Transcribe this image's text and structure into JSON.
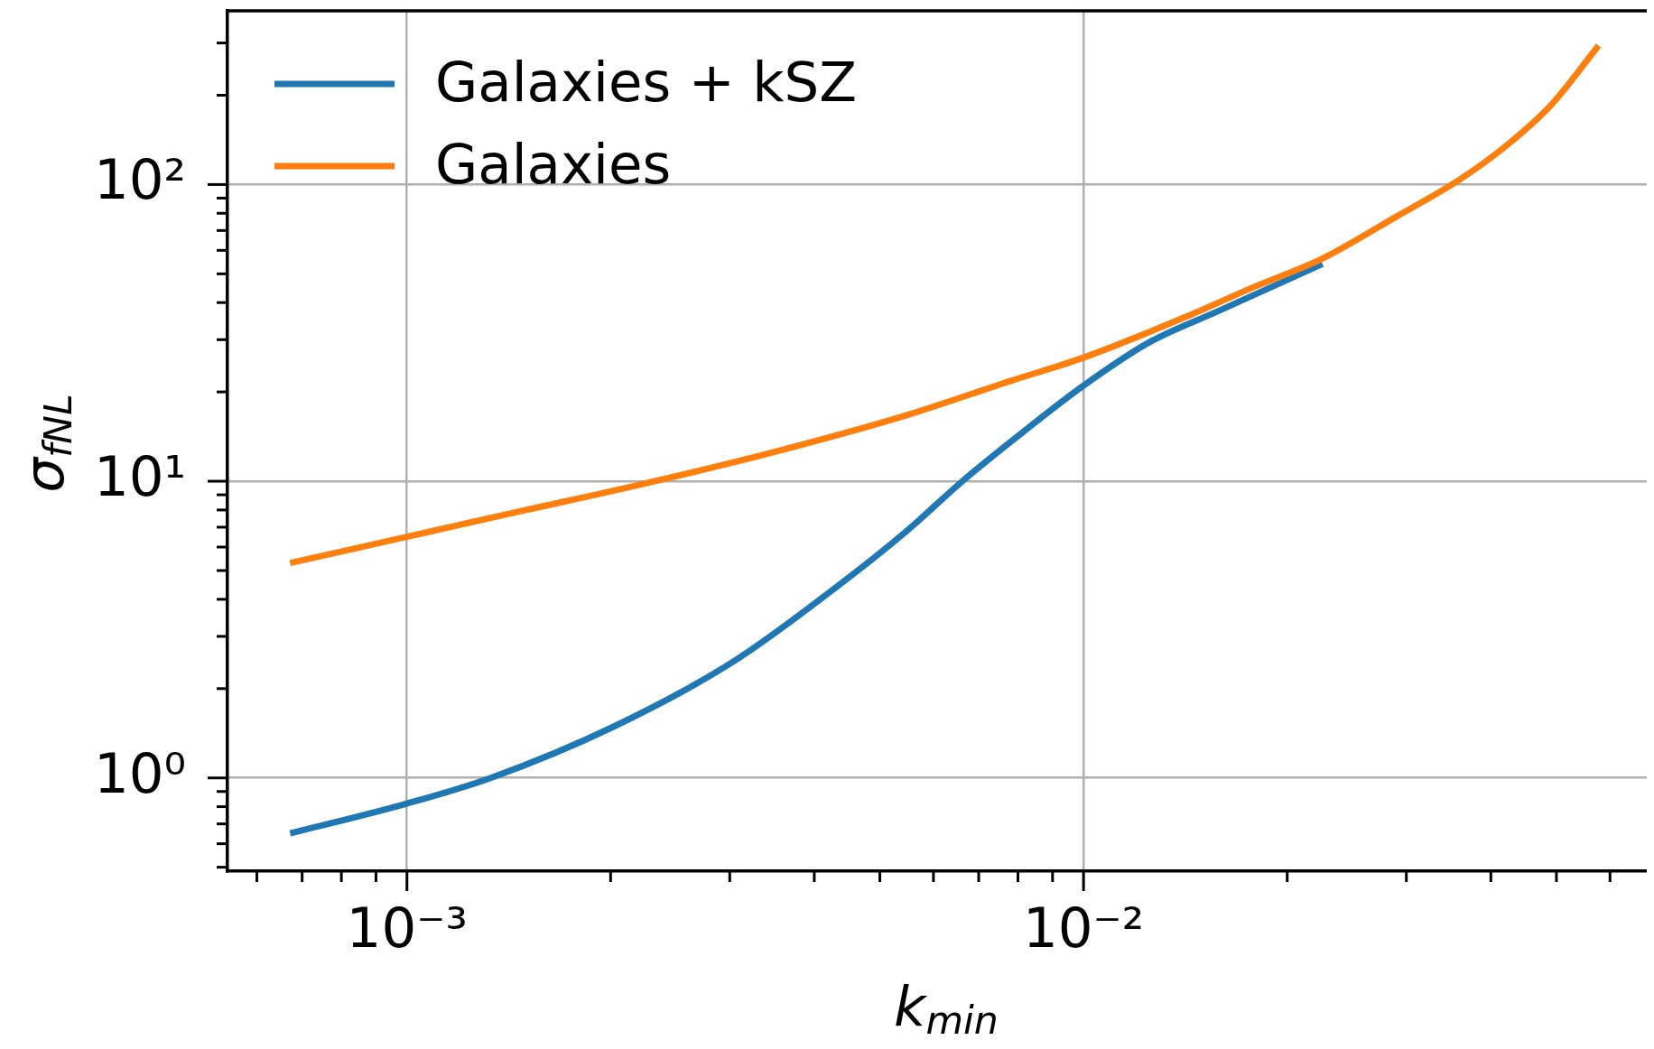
{
  "chart_data": {
    "type": "line",
    "xlabel": "k$_{min}$",
    "ylabel": "σ$_{fNL}$",
    "series": [
      {
        "name": "Galaxies + kSZ",
        "color": "#1f77b4",
        "x": [
          0.000672,
          0.001,
          0.00133,
          0.00201,
          0.00304,
          0.00433,
          0.00548,
          0.00662,
          0.008,
          0.01,
          0.01251,
          0.01584,
          0.02255
        ],
        "values": [
          0.65,
          0.82,
          1.0,
          1.48,
          2.47,
          4.43,
          6.8,
          10.0,
          14.2,
          21.0,
          29.4,
          37.5,
          54
        ]
      },
      {
        "name": "Galaxies",
        "color": "#ff7f0e",
        "x": [
          0.000672,
          0.001,
          0.0015,
          0.00213,
          0.00342,
          0.00548,
          0.00781,
          0.01,
          0.01408,
          0.0178,
          0.02255,
          0.0289,
          0.03576,
          0.04195,
          0.04917,
          0.0577
        ],
        "values": [
          5.3,
          6.5,
          8.0,
          9.55,
          12.4,
          16.7,
          21.8,
          26.1,
          35.6,
          45,
          56.3,
          77.6,
          103,
          134,
          186,
          294
        ]
      }
    ],
    "xlim": [
      0.000543,
      0.068
    ],
    "ylim": [
      0.485,
      385
    ],
    "xticks": [
      {
        "value": 0.0006,
        "label": null
      },
      {
        "value": 0.0007,
        "label": null
      },
      {
        "value": 0.0008,
        "label": null
      },
      {
        "value": 0.0009,
        "label": null
      },
      {
        "value": 0.001,
        "label": "10⁻³"
      },
      {
        "value": 0.002,
        "label": null
      },
      {
        "value": 0.003,
        "label": null
      },
      {
        "value": 0.004,
        "label": null
      },
      {
        "value": 0.005,
        "label": null
      },
      {
        "value": 0.006,
        "label": null
      },
      {
        "value": 0.007,
        "label": null
      },
      {
        "value": 0.008,
        "label": null
      },
      {
        "value": 0.009,
        "label": null
      },
      {
        "value": 0.01,
        "label": "10⁻²"
      },
      {
        "value": 0.02,
        "label": null
      },
      {
        "value": 0.03,
        "label": null
      },
      {
        "value": 0.04,
        "label": null
      },
      {
        "value": 0.05,
        "label": null
      },
      {
        "value": 0.06,
        "label": null
      }
    ],
    "yticks": [
      {
        "value": 0.5,
        "label": null
      },
      {
        "value": 0.6,
        "label": null
      },
      {
        "value": 0.7,
        "label": null
      },
      {
        "value": 0.8,
        "label": null
      },
      {
        "value": 0.9,
        "label": null
      },
      {
        "value": 1,
        "label": "10⁰"
      },
      {
        "value": 2,
        "label": null
      },
      {
        "value": 3,
        "label": null
      },
      {
        "value": 4,
        "label": null
      },
      {
        "value": 5,
        "label": null
      },
      {
        "value": 6,
        "label": null
      },
      {
        "value": 7,
        "label": null
      },
      {
        "value": 8,
        "label": null
      },
      {
        "value": 9,
        "label": null
      },
      {
        "value": 10,
        "label": "10¹"
      },
      {
        "value": 20,
        "label": null
      },
      {
        "value": 30,
        "label": null
      },
      {
        "value": 40,
        "label": null
      },
      {
        "value": 50,
        "label": null
      },
      {
        "value": 60,
        "label": null
      },
      {
        "value": 70,
        "label": null
      },
      {
        "value": 80,
        "label": null
      },
      {
        "value": 90,
        "label": null
      },
      {
        "value": 100,
        "label": "10²"
      },
      {
        "value": 200,
        "label": null
      },
      {
        "value": 300,
        "label": null
      }
    ],
    "log": "xy",
    "grid": true,
    "legend": "top left",
    "marker": "none",
    "line_style": "solid"
  }
}
